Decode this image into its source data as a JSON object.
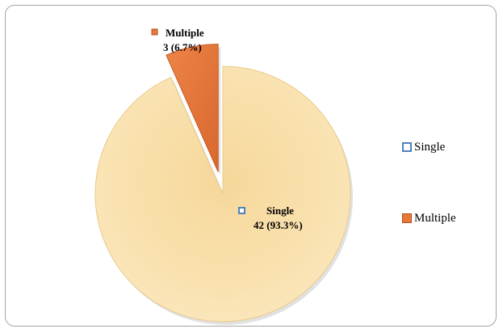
{
  "chart_data": {
    "type": "pie",
    "title": "",
    "categories": [
      "Single",
      "Multiple"
    ],
    "values": [
      42,
      3
    ],
    "percent_labels": [
      "93.3%",
      "6.7%"
    ],
    "data_labels": {
      "Single": {
        "name": "Single",
        "value_text": "42 (93.3%)"
      },
      "Multiple": {
        "name": "Multiple",
        "value_text": "3 (6.7%)"
      }
    },
    "exploded": [
      "Multiple"
    ],
    "colors": {
      "Single": "#f9ddA0",
      "Multiple": "#e8783a"
    },
    "legend": {
      "placement": "right",
      "entries": [
        "Single",
        "Multiple"
      ]
    }
  }
}
